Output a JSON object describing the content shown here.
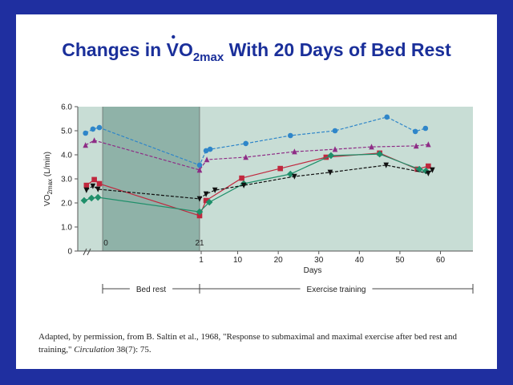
{
  "title": {
    "prefix": "Changes in ",
    "symbol": "VO",
    "subscript": "2max",
    "suffix": " With 20 Days of Bed Rest"
  },
  "chart_data": {
    "type": "line",
    "y_label": {
      "symbol": "VO",
      "subscript": "2max",
      "suffix": " (L/min)"
    },
    "x_label": "Days",
    "ylim": [
      0,
      6
    ],
    "yticks": [
      {
        "value": 0,
        "label": "0"
      },
      {
        "value": 1,
        "label": "1.0"
      },
      {
        "value": 2,
        "label": "2.0"
      },
      {
        "value": 3,
        "label": "3.0"
      },
      {
        "value": 4,
        "label": "4.0"
      },
      {
        "value": 5,
        "label": "5.0"
      },
      {
        "value": 6,
        "label": "6.0"
      }
    ],
    "bedrest_xticks": [
      0,
      21
    ],
    "training_xlim": [
      1,
      68
    ],
    "training_xticks": [
      1,
      10,
      20,
      30,
      40,
      50,
      60
    ],
    "phases": [
      "Bed rest",
      "Exercise training"
    ],
    "series": [
      {
        "color": "#2f86c9",
        "marker": "circle",
        "dashed": true,
        "bedrest_x": [
          -3.7,
          -2.1,
          -0.7,
          21
        ],
        "bedrest_values": [
          4.9,
          5.07,
          5.13,
          3.57
        ],
        "training_x": [
          2.2,
          3.2,
          12,
          23,
          34,
          46.8,
          53.8,
          56.3
        ],
        "training_values": [
          4.17,
          4.23,
          4.47,
          4.8,
          5.0,
          5.57,
          4.97,
          5.1
        ]
      },
      {
        "color": "#8e2c86",
        "marker": "triangle-up",
        "dashed": true,
        "bedrest_x": [
          -3.7,
          -1.8,
          21
        ],
        "bedrest_values": [
          4.4,
          4.6,
          3.37
        ],
        "training_x": [
          2.4,
          12,
          24,
          34,
          43,
          54,
          57
        ],
        "training_values": [
          3.8,
          3.9,
          4.13,
          4.23,
          4.33,
          4.37,
          4.43
        ]
      },
      {
        "color": "#c0283e",
        "marker": "square",
        "dashed": false,
        "bedrest_x": [
          -3.5,
          -1.8,
          -0.7,
          21
        ],
        "bedrest_values": [
          2.73,
          2.97,
          2.8,
          1.47
        ],
        "training_x": [
          2.2,
          11,
          20.5,
          31.8,
          45,
          54.3,
          57
        ],
        "training_values": [
          2.1,
          3.03,
          3.43,
          3.9,
          4.07,
          3.4,
          3.53
        ]
      },
      {
        "color": "#1f8f6a",
        "marker": "diamond",
        "dashed": false,
        "bedrest_x": [
          -4.0,
          -2.4,
          -1.0,
          21
        ],
        "bedrest_values": [
          2.1,
          2.2,
          2.23,
          1.63
        ],
        "training_x": [
          3,
          11.5,
          23,
          33,
          45,
          54.8,
          56.4
        ],
        "training_values": [
          2.03,
          2.8,
          3.2,
          3.97,
          4.03,
          3.4,
          3.33
        ]
      },
      {
        "color": "#111111",
        "marker": "triangle-down",
        "dashed": true,
        "bedrest_x": [
          -3.5,
          -2.1,
          -1.0,
          21
        ],
        "bedrest_values": [
          2.53,
          2.7,
          2.57,
          2.17
        ],
        "training_x": [
          2.2,
          4.4,
          11.5,
          24,
          32.8,
          46.6,
          57,
          58
        ],
        "training_values": [
          2.37,
          2.53,
          2.73,
          3.1,
          3.27,
          3.57,
          3.23,
          3.37
        ]
      }
    ]
  },
  "caption": {
    "text": "Adapted, by permission, from B. Saltin et al., 1968, \"Response to submaximal and maximal exercise after bed rest and training,\" ",
    "journal": "Circulation",
    "citation": " 38(7): 75."
  }
}
